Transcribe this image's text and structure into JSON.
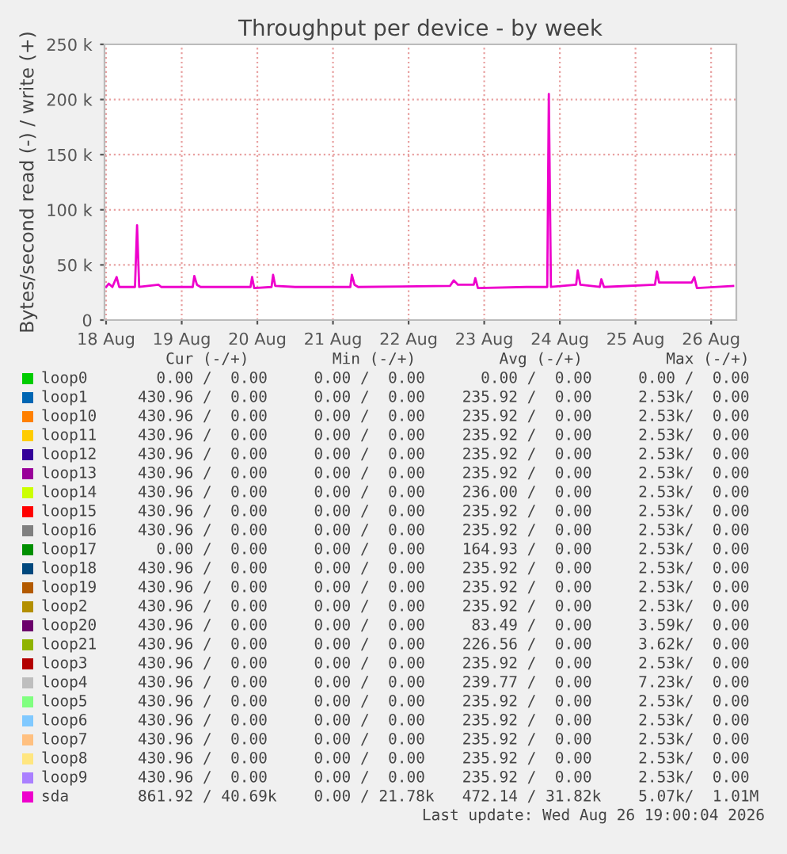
{
  "chart_data": {
    "type": "line",
    "title": "Throughput per device - by week",
    "ylabel": "Bytes/second read (-) / write (+)",
    "xlim": [
      "2026-08-18T11:30",
      "2026-08-26T20:00"
    ],
    "xticks": [
      {
        "value": "2026-08-18T12:00",
        "label": "18 Aug"
      },
      {
        "value": "2026-08-19T12:00",
        "label": "19 Aug"
      },
      {
        "value": "2026-08-20T12:00",
        "label": "20 Aug"
      },
      {
        "value": "2026-08-21T12:00",
        "label": "21 Aug"
      },
      {
        "value": "2026-08-22T12:00",
        "label": "22 Aug"
      },
      {
        "value": "2026-08-23T12:00",
        "label": "23 Aug"
      },
      {
        "value": "2026-08-24T12:00",
        "label": "24 Aug"
      },
      {
        "value": "2026-08-25T12:00",
        "label": "25 Aug"
      },
      {
        "value": "2026-08-26T12:00",
        "label": "26 Aug"
      }
    ],
    "ylim": [
      0,
      250000
    ],
    "yticks": [
      0,
      {
        "value": 50000,
        "label": "50 k"
      },
      {
        "value": 100000,
        "label": "100 k"
      },
      {
        "value": 150000,
        "label": "150 k"
      },
      {
        "value": 200000,
        "label": "200 k"
      },
      {
        "value": 250000,
        "label": "250 k"
      }
    ],
    "grid": true,
    "legend": "bottom",
    "marker": "none",
    "line_style": "solid",
    "series": [
      {
        "name": "loop0",
        "color": "#00cc00"
      },
      {
        "name": "loop1",
        "color": "#0066b3"
      },
      {
        "name": "loop10",
        "color": "#ff8000"
      },
      {
        "name": "loop11",
        "color": "#ffcc00"
      },
      {
        "name": "loop12",
        "color": "#330099"
      },
      {
        "name": "loop13",
        "color": "#990099"
      },
      {
        "name": "loop14",
        "color": "#ccff00"
      },
      {
        "name": "loop15",
        "color": "#ff0000"
      },
      {
        "name": "loop16",
        "color": "#808080"
      },
      {
        "name": "loop17",
        "color": "#008f00"
      },
      {
        "name": "loop18",
        "color": "#00487d"
      },
      {
        "name": "loop19",
        "color": "#b35a00"
      },
      {
        "name": "loop2",
        "color": "#b38f00"
      },
      {
        "name": "loop20",
        "color": "#6b006b"
      },
      {
        "name": "loop21",
        "color": "#8fb300"
      },
      {
        "name": "loop3",
        "color": "#b30000"
      },
      {
        "name": "loop4",
        "color": "#bebebe"
      },
      {
        "name": "loop5",
        "color": "#80ff80"
      },
      {
        "name": "loop6",
        "color": "#80c9ff"
      },
      {
        "name": "loop7",
        "color": "#ffc080"
      },
      {
        "name": "loop8",
        "color": "#ffe680"
      },
      {
        "name": "loop9",
        "color": "#aa80ff"
      },
      {
        "name": "sda",
        "color": "#ee00cc",
        "x": [
          "2026-08-18T12:00",
          "2026-08-18T12:50",
          "2026-08-18T14:00",
          "2026-08-18T15:20",
          "2026-08-18T16:10",
          "2026-08-18T21:10",
          "2026-08-18T21:50",
          "2026-08-18T22:30",
          "2026-08-19T04:40",
          "2026-08-19T05:30",
          "2026-08-19T15:30",
          "2026-08-19T16:00",
          "2026-08-19T16:50",
          "2026-08-19T18:00",
          "2026-08-20T09:50",
          "2026-08-20T10:20",
          "2026-08-20T11:00",
          "2026-08-20T16:30",
          "2026-08-20T17:00",
          "2026-08-20T17:40",
          "2026-08-21T00:00",
          "2026-08-21T17:30",
          "2026-08-21T18:00",
          "2026-08-21T18:50",
          "2026-08-21T20:00",
          "2026-08-23T01:10",
          "2026-08-23T02:20",
          "2026-08-23T03:40",
          "2026-08-23T08:40",
          "2026-08-23T09:10",
          "2026-08-23T10:00",
          "2026-08-24T01:20",
          "2026-08-24T08:00",
          "2026-08-24T08:30",
          "2026-08-24T09:10",
          "2026-08-24T17:10",
          "2026-08-24T17:40",
          "2026-08-24T18:30",
          "2026-08-25T00:40",
          "2026-08-25T01:10",
          "2026-08-25T02:00",
          "2026-08-25T18:10",
          "2026-08-25T18:50",
          "2026-08-25T19:30",
          "2026-08-26T05:50",
          "2026-08-26T06:40",
          "2026-08-26T07:30",
          "2026-08-26T19:00"
        ],
        "values": [
          30000,
          33000,
          30000,
          39000,
          30000,
          30000,
          86000,
          30000,
          32000,
          30000,
          30000,
          40000,
          32000,
          30000,
          30000,
          39000,
          29000,
          30000,
          41000,
          31000,
          30000,
          30000,
          41000,
          32000,
          30000,
          31000,
          36000,
          32000,
          32000,
          38000,
          29000,
          30000,
          30000,
          205000,
          30000,
          32000,
          45000,
          32000,
          30000,
          37000,
          30000,
          32000,
          44000,
          34000,
          34000,
          39000,
          29000,
          31000
        ]
      }
    ],
    "annotations": [
      "   Cur (-/+)         Min (-/+)         Avg (-/+)         Max (-/+)",
      "  0.00 /  0.00     0.00 /  0.00      0.00 /  0.00     0.00 /  0.00",
      "430.96 /  0.00     0.00 /  0.00    235.92 /  0.00     2.53k/  0.00",
      "430.96 /  0.00     0.00 /  0.00    235.92 /  0.00     2.53k/  0.00",
      "430.96 /  0.00     0.00 /  0.00    235.92 /  0.00     2.53k/  0.00",
      "430.96 /  0.00     0.00 /  0.00    235.92 /  0.00     2.53k/  0.00",
      "430.96 /  0.00     0.00 /  0.00    235.92 /  0.00     2.53k/  0.00",
      "430.96 /  0.00     0.00 /  0.00    236.00 /  0.00     2.53k/  0.00",
      "430.96 /  0.00     0.00 /  0.00    235.92 /  0.00     2.53k/  0.00",
      "430.96 /  0.00     0.00 /  0.00    235.92 /  0.00     2.53k/  0.00",
      "  0.00 /  0.00     0.00 /  0.00    164.93 /  0.00     2.53k/  0.00",
      "430.96 /  0.00     0.00 /  0.00    235.92 /  0.00     2.53k/  0.00",
      "430.96 /  0.00     0.00 /  0.00    235.92 /  0.00     2.53k/  0.00",
      "430.96 /  0.00     0.00 /  0.00    235.92 /  0.00     2.53k/  0.00",
      "430.96 /  0.00     0.00 /  0.00     83.49 /  0.00     3.59k/  0.00",
      "430.96 /  0.00     0.00 /  0.00    226.56 /  0.00     3.62k/  0.00",
      "430.96 /  0.00     0.00 /  0.00    235.92 /  0.00     2.53k/  0.00",
      "430.96 /  0.00     0.00 /  0.00    239.77 /  0.00     7.23k/  0.00",
      "430.96 /  0.00     0.00 /  0.00    235.92 /  0.00     2.53k/  0.00",
      "430.96 /  0.00     0.00 /  0.00    235.92 /  0.00     2.53k/  0.00",
      "430.96 /  0.00     0.00 /  0.00    235.92 /  0.00     2.53k/  0.00",
      "430.96 /  0.00     0.00 /  0.00    235.92 /  0.00     2.53k/  0.00",
      "430.96 /  0.00     0.00 /  0.00    235.92 /  0.00     2.53k/  0.00",
      "861.92 / 40.69k    0.00 / 21.78k   472.14 / 31.82k    5.07k/  1.01M",
      "Last update: Wed Aug 26 19:00:04 2026"
    ]
  }
}
